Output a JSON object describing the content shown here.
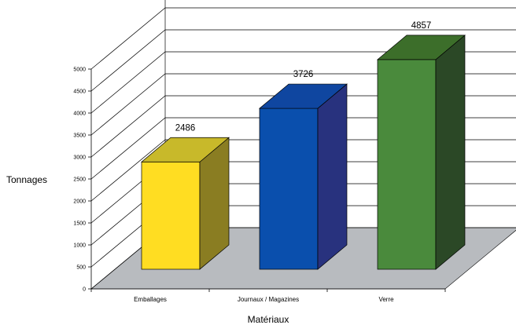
{
  "chart_data": {
    "type": "bar",
    "title": "",
    "xlabel": "Matériaux",
    "ylabel": "Tonnages",
    "categories": [
      "Emballages",
      "Journaux / Magazines",
      "Verre"
    ],
    "values": [
      2486,
      3726,
      4857
    ],
    "data_labels": [
      "2486",
      "3726",
      "4857"
    ],
    "ylim": [
      0,
      5000
    ],
    "yticks": [
      0,
      500,
      1000,
      1500,
      2000,
      2500,
      3000,
      3500,
      4000,
      4500,
      5000
    ],
    "ytick_labels": [
      "0",
      "500",
      "1000",
      "1500",
      "2000",
      "2500",
      "3000",
      "3500",
      "4000",
      "4500",
      "5000"
    ],
    "grid": true,
    "three_d": true,
    "colors": {
      "bars": [
        {
          "front": "#ffdd22",
          "top": "#c8b92a",
          "side": "#8a7d22"
        },
        {
          "front": "#0a4fad",
          "top": "#0f46a0",
          "side": "#28327e"
        },
        {
          "front": "#4a8a3c",
          "top": "#3c6e2a",
          "side": "#2b4826"
        }
      ],
      "floor": "#b8bbbf",
      "grid": "#000000"
    }
  }
}
